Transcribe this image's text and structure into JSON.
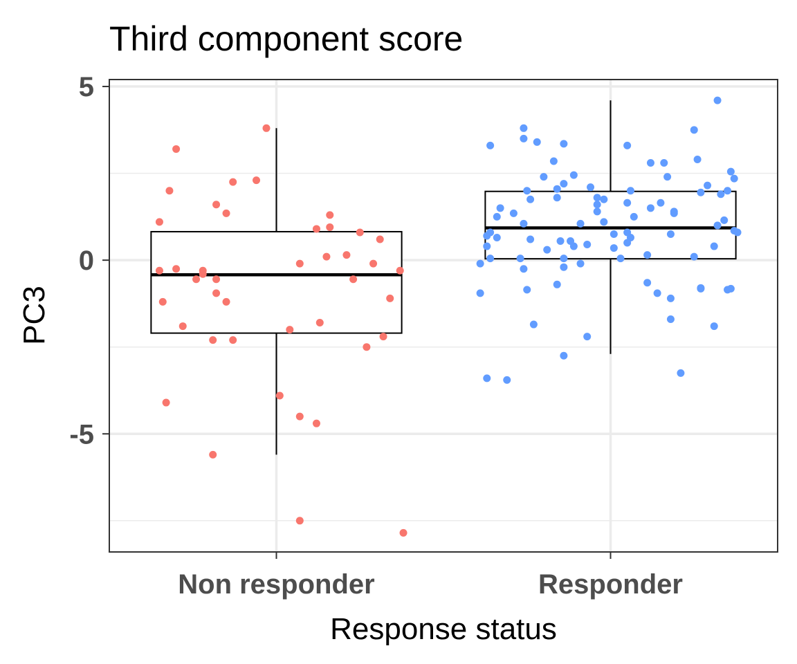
{
  "chart_data": {
    "type": "boxplot",
    "title": "Third component score",
    "xlabel": "Response status",
    "ylabel": "PC3",
    "categories": [
      "Non responder",
      "Responder"
    ],
    "y_ticks": [
      -5,
      0,
      5
    ],
    "y_tick_labels": [
      "-5",
      "0",
      "5"
    ],
    "ylim": [
      -8.4,
      5.2
    ],
    "grid": true,
    "legend": "none",
    "colors": {
      "Non responder": "#f8766d",
      "Responder": "#619cff"
    },
    "boxes": [
      {
        "category": "Non responder",
        "min": -5.6,
        "q1": -2.1,
        "median": -0.42,
        "q3": 0.82,
        "max": 3.8
      },
      {
        "category": "Responder",
        "min": -2.7,
        "q1": 0.04,
        "median": 0.93,
        "q3": 1.98,
        "max": 4.6
      }
    ],
    "points": [
      {
        "category": "Non responder",
        "x_offset": -0.3,
        "y": 3.2
      },
      {
        "category": "Non responder",
        "x_offset": -0.32,
        "y": 2.0
      },
      {
        "category": "Non responder",
        "x_offset": -0.35,
        "y": 1.1
      },
      {
        "category": "Non responder",
        "x_offset": -0.35,
        "y": -0.3
      },
      {
        "category": "Non responder",
        "x_offset": -0.3,
        "y": -0.25
      },
      {
        "category": "Non responder",
        "x_offset": -0.34,
        "y": -1.2
      },
      {
        "category": "Non responder",
        "x_offset": -0.28,
        "y": -1.9
      },
      {
        "category": "Non responder",
        "x_offset": -0.33,
        "y": -4.1
      },
      {
        "category": "Non responder",
        "x_offset": -0.24,
        "y": -0.55
      },
      {
        "category": "Non responder",
        "x_offset": -0.22,
        "y": -0.3
      },
      {
        "category": "Non responder",
        "x_offset": -0.22,
        "y": -0.4
      },
      {
        "category": "Non responder",
        "x_offset": -0.18,
        "y": 1.6
      },
      {
        "category": "Non responder",
        "x_offset": -0.15,
        "y": 1.35
      },
      {
        "category": "Non responder",
        "x_offset": -0.13,
        "y": 2.25
      },
      {
        "category": "Non responder",
        "x_offset": -0.06,
        "y": 2.3
      },
      {
        "category": "Non responder",
        "x_offset": -0.03,
        "y": 3.8
      },
      {
        "category": "Non responder",
        "x_offset": -0.18,
        "y": -0.55
      },
      {
        "category": "Non responder",
        "x_offset": -0.18,
        "y": -0.95
      },
      {
        "category": "Non responder",
        "x_offset": -0.15,
        "y": -1.2
      },
      {
        "category": "Non responder",
        "x_offset": -0.19,
        "y": -2.3
      },
      {
        "category": "Non responder",
        "x_offset": -0.13,
        "y": -2.3
      },
      {
        "category": "Non responder",
        "x_offset": -0.19,
        "y": -5.6
      },
      {
        "category": "Non responder",
        "x_offset": 0.01,
        "y": -3.9
      },
      {
        "category": "Non responder",
        "x_offset": 0.04,
        "y": -2.0
      },
      {
        "category": "Non responder",
        "x_offset": 0.07,
        "y": -0.1
      },
      {
        "category": "Non responder",
        "x_offset": 0.07,
        "y": -4.5
      },
      {
        "category": "Non responder",
        "x_offset": 0.07,
        "y": -7.5
      },
      {
        "category": "Non responder",
        "x_offset": 0.12,
        "y": -4.7
      },
      {
        "category": "Non responder",
        "x_offset": 0.13,
        "y": -1.8
      },
      {
        "category": "Non responder",
        "x_offset": 0.12,
        "y": 0.9
      },
      {
        "category": "Non responder",
        "x_offset": 0.16,
        "y": 0.95
      },
      {
        "category": "Non responder",
        "x_offset": 0.16,
        "y": 1.3
      },
      {
        "category": "Non responder",
        "x_offset": 0.15,
        "y": 0.1
      },
      {
        "category": "Non responder",
        "x_offset": 0.21,
        "y": 0.15
      },
      {
        "category": "Non responder",
        "x_offset": 0.23,
        "y": -0.55
      },
      {
        "category": "Non responder",
        "x_offset": 0.25,
        "y": 0.8
      },
      {
        "category": "Non responder",
        "x_offset": 0.27,
        "y": -2.5
      },
      {
        "category": "Non responder",
        "x_offset": 0.29,
        "y": -0.1
      },
      {
        "category": "Non responder",
        "x_offset": 0.31,
        "y": 0.6
      },
      {
        "category": "Non responder",
        "x_offset": 0.32,
        "y": -2.2
      },
      {
        "category": "Non responder",
        "x_offset": 0.34,
        "y": -1.1
      },
      {
        "category": "Non responder",
        "x_offset": 0.37,
        "y": -0.3
      },
      {
        "category": "Non responder",
        "x_offset": 0.38,
        "y": -7.85
      },
      {
        "category": "Responder",
        "x_offset": -0.36,
        "y": 3.3
      },
      {
        "category": "Responder",
        "x_offset": -0.36,
        "y": 0.8
      },
      {
        "category": "Responder",
        "x_offset": -0.37,
        "y": 0.7
      },
      {
        "category": "Responder",
        "x_offset": -0.37,
        "y": 0.4
      },
      {
        "category": "Responder",
        "x_offset": -0.39,
        "y": -0.1
      },
      {
        "category": "Responder",
        "x_offset": -0.39,
        "y": -0.95
      },
      {
        "category": "Responder",
        "x_offset": -0.37,
        "y": -3.4
      },
      {
        "category": "Responder",
        "x_offset": -0.31,
        "y": -3.45
      },
      {
        "category": "Responder",
        "x_offset": -0.34,
        "y": 1.25
      },
      {
        "category": "Responder",
        "x_offset": -0.33,
        "y": 1.5
      },
      {
        "category": "Responder",
        "x_offset": -0.34,
        "y": 0.65
      },
      {
        "category": "Responder",
        "x_offset": -0.36,
        "y": 0.05
      },
      {
        "category": "Responder",
        "x_offset": -0.29,
        "y": 1.35
      },
      {
        "category": "Responder",
        "x_offset": -0.26,
        "y": 1.05
      },
      {
        "category": "Responder",
        "x_offset": -0.27,
        "y": 0.05
      },
      {
        "category": "Responder",
        "x_offset": -0.26,
        "y": -0.25
      },
      {
        "category": "Responder",
        "x_offset": -0.25,
        "y": -0.85
      },
      {
        "category": "Responder",
        "x_offset": -0.23,
        "y": -1.85
      },
      {
        "category": "Responder",
        "x_offset": -0.26,
        "y": 3.8
      },
      {
        "category": "Responder",
        "x_offset": -0.26,
        "y": 3.5
      },
      {
        "category": "Responder",
        "x_offset": -0.22,
        "y": 3.4
      },
      {
        "category": "Responder",
        "x_offset": -0.25,
        "y": 2.0
      },
      {
        "category": "Responder",
        "x_offset": -0.24,
        "y": 1.75
      },
      {
        "category": "Responder",
        "x_offset": -0.24,
        "y": 0.6
      },
      {
        "category": "Responder",
        "x_offset": -0.2,
        "y": 2.4
      },
      {
        "category": "Responder",
        "x_offset": -0.17,
        "y": 2.85
      },
      {
        "category": "Responder",
        "x_offset": -0.16,
        "y": 2.05
      },
      {
        "category": "Responder",
        "x_offset": -0.14,
        "y": 2.2
      },
      {
        "category": "Responder",
        "x_offset": -0.14,
        "y": 3.35
      },
      {
        "category": "Responder",
        "x_offset": -0.11,
        "y": 2.45
      },
      {
        "category": "Responder",
        "x_offset": -0.16,
        "y": 1.8
      },
      {
        "category": "Responder",
        "x_offset": -0.19,
        "y": 0.3
      },
      {
        "category": "Responder",
        "x_offset": -0.12,
        "y": 0.55
      },
      {
        "category": "Responder",
        "x_offset": -0.15,
        "y": 0.55
      },
      {
        "category": "Responder",
        "x_offset": -0.14,
        "y": -0.2
      },
      {
        "category": "Responder",
        "x_offset": -0.16,
        "y": -0.7
      },
      {
        "category": "Responder",
        "x_offset": -0.14,
        "y": 0.05
      },
      {
        "category": "Responder",
        "x_offset": -0.11,
        "y": 0.4
      },
      {
        "category": "Responder",
        "x_offset": -0.09,
        "y": 1.05
      },
      {
        "category": "Responder",
        "x_offset": -0.09,
        "y": -0.1
      },
      {
        "category": "Responder",
        "x_offset": -0.07,
        "y": 0.45
      },
      {
        "category": "Responder",
        "x_offset": -0.06,
        "y": 2.1
      },
      {
        "category": "Responder",
        "x_offset": -0.04,
        "y": 1.8
      },
      {
        "category": "Responder",
        "x_offset": -0.04,
        "y": 1.6
      },
      {
        "category": "Responder",
        "x_offset": -0.04,
        "y": 1.4
      },
      {
        "category": "Responder",
        "x_offset": -0.02,
        "y": 1.1
      },
      {
        "category": "Responder",
        "x_offset": -0.02,
        "y": 1.75
      },
      {
        "category": "Responder",
        "x_offset": -0.07,
        "y": -2.2
      },
      {
        "category": "Responder",
        "x_offset": -0.14,
        "y": -2.75
      },
      {
        "category": "Responder",
        "x_offset": 0.01,
        "y": 0.75
      },
      {
        "category": "Responder",
        "x_offset": 0.01,
        "y": 0.35
      },
      {
        "category": "Responder",
        "x_offset": 0.03,
        "y": 0.05
      },
      {
        "category": "Responder",
        "x_offset": 0.05,
        "y": 0.5
      },
      {
        "category": "Responder",
        "x_offset": 0.05,
        "y": 0.8
      },
      {
        "category": "Responder",
        "x_offset": 0.06,
        "y": 0.65
      },
      {
        "category": "Responder",
        "x_offset": 0.05,
        "y": 1.65
      },
      {
        "category": "Responder",
        "x_offset": 0.06,
        "y": 2.0
      },
      {
        "category": "Responder",
        "x_offset": 0.07,
        "y": 1.25
      },
      {
        "category": "Responder",
        "x_offset": 0.05,
        "y": 3.3
      },
      {
        "category": "Responder",
        "x_offset": 0.11,
        "y": 0.15
      },
      {
        "category": "Responder",
        "x_offset": 0.11,
        "y": -0.65
      },
      {
        "category": "Responder",
        "x_offset": 0.12,
        "y": 1.5
      },
      {
        "category": "Responder",
        "x_offset": 0.12,
        "y": 2.8
      },
      {
        "category": "Responder",
        "x_offset": 0.14,
        "y": -0.95
      },
      {
        "category": "Responder",
        "x_offset": 0.15,
        "y": 1.65
      },
      {
        "category": "Responder",
        "x_offset": 0.16,
        "y": 2.8
      },
      {
        "category": "Responder",
        "x_offset": 0.17,
        "y": 2.4
      },
      {
        "category": "Responder",
        "x_offset": 0.18,
        "y": 0.75
      },
      {
        "category": "Responder",
        "x_offset": 0.18,
        "y": -1.1
      },
      {
        "category": "Responder",
        "x_offset": 0.18,
        "y": -1.7
      },
      {
        "category": "Responder",
        "x_offset": 0.19,
        "y": 1.35
      },
      {
        "category": "Responder",
        "x_offset": 0.19,
        "y": 1.4
      },
      {
        "category": "Responder",
        "x_offset": 0.21,
        "y": -3.25
      },
      {
        "category": "Responder",
        "x_offset": 0.25,
        "y": 3.75
      },
      {
        "category": "Responder",
        "x_offset": 0.25,
        "y": 0.1
      },
      {
        "category": "Responder",
        "x_offset": 0.26,
        "y": 2.9
      },
      {
        "category": "Responder",
        "x_offset": 0.27,
        "y": 1.95
      },
      {
        "category": "Responder",
        "x_offset": 0.27,
        "y": -0.8
      },
      {
        "category": "Responder",
        "x_offset": 0.27,
        "y": -0.82
      },
      {
        "category": "Responder",
        "x_offset": 0.29,
        "y": 2.15
      },
      {
        "category": "Responder",
        "x_offset": 0.31,
        "y": 0.4
      },
      {
        "category": "Responder",
        "x_offset": 0.31,
        "y": -1.9
      },
      {
        "category": "Responder",
        "x_offset": 0.32,
        "y": 1.0
      },
      {
        "category": "Responder",
        "x_offset": 0.33,
        "y": 1.9
      },
      {
        "category": "Responder",
        "x_offset": 0.34,
        "y": 1.15
      },
      {
        "category": "Responder",
        "x_offset": 0.35,
        "y": 2.0
      },
      {
        "category": "Responder",
        "x_offset": 0.35,
        "y": -0.85
      },
      {
        "category": "Responder",
        "x_offset": 0.36,
        "y": 2.55
      },
      {
        "category": "Responder",
        "x_offset": 0.36,
        "y": -0.82
      },
      {
        "category": "Responder",
        "x_offset": 0.37,
        "y": 2.35
      },
      {
        "category": "Responder",
        "x_offset": 0.37,
        "y": 0.85
      },
      {
        "category": "Responder",
        "x_offset": 0.38,
        "y": 0.8
      },
      {
        "category": "Responder",
        "x_offset": 0.32,
        "y": 4.6
      }
    ]
  }
}
